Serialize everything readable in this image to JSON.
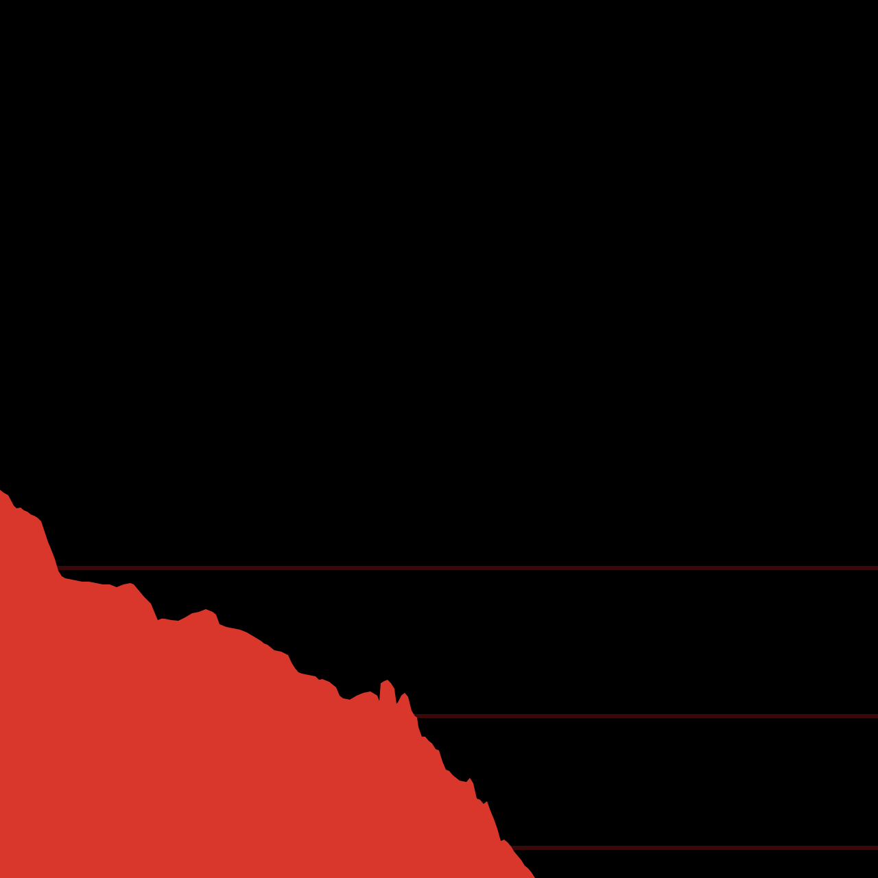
{
  "chart_data": {
    "type": "area",
    "title": "",
    "xlabel": "",
    "ylabel": "",
    "grid": true,
    "legend": "none",
    "xlim": [
      0,
      1280
    ],
    "ylim": [
      0,
      720
    ],
    "gridlines_y": [
      452,
      236,
      44
    ],
    "colors": {
      "background": "#000000",
      "area": "#D9372B",
      "grid": "#3A0A0A"
    },
    "series": [
      {
        "x": [
          0,
          5,
          12,
          20,
          24,
          30,
          35,
          40,
          45,
          50,
          55,
          60,
          65,
          70,
          75,
          80,
          85,
          90,
          95,
          100,
          110,
          120,
          130,
          140,
          150,
          160,
          170,
          180,
          190,
          195,
          200,
          210,
          220,
          225,
          230,
          235,
          240,
          250,
          260,
          270,
          280,
          290,
          300,
          310,
          315,
          320,
          325,
          330,
          340,
          350,
          360,
          370,
          380,
          385,
          390,
          395,
          400,
          410,
          420,
          425,
          430,
          435,
          440,
          450,
          460,
          465,
          470,
          480,
          490,
          495,
          500,
          510,
          520,
          530,
          540,
          550,
          553,
          555,
          560,
          565,
          570,
          575,
          578,
          580,
          585,
          590,
          595,
          600,
          605,
          608,
          610,
          615,
          620,
          625,
          630,
          635,
          640,
          645,
          650,
          655,
          660,
          670,
          680,
          685,
          690,
          695,
          700,
          705,
          710,
          715,
          720,
          725,
          730,
          735,
          740,
          745,
          750,
          755,
          760,
          765,
          770,
          775,
          780
        ],
        "y": [
          566,
          562,
          558,
          543,
          539,
          540,
          536,
          534,
          530,
          528,
          525,
          520,
          505,
          490,
          478,
          465,
          448,
          440,
          437,
          436,
          434,
          432,
          432,
          430,
          428,
          428,
          424,
          428,
          430,
          428,
          422,
          410,
          400,
          388,
          376,
          378,
          378,
          376,
          375,
          380,
          386,
          388,
          392,
          388,
          384,
          370,
          368,
          366,
          364,
          362,
          358,
          352,
          346,
          342,
          340,
          336,
          332,
          330,
          325,
          314,
          306,
          300,
          298,
          296,
          294,
          289,
          290,
          286,
          278,
          266,
          262,
          260,
          266,
          270,
          272,
          266,
          258,
          284,
          287,
          289,
          284,
          276,
          254,
          256,
          266,
          270,
          264,
          244,
          236,
          234,
          220,
          206,
          206,
          200,
          196,
          188,
          186,
          170,
          158,
          156,
          150,
          142,
          140,
          146,
          138,
          116,
          114,
          108,
          112,
          98,
          86,
          72,
          54,
          56,
          52,
          46,
          38,
          32,
          26,
          18,
          14,
          8,
          0
        ]
      }
    ]
  }
}
